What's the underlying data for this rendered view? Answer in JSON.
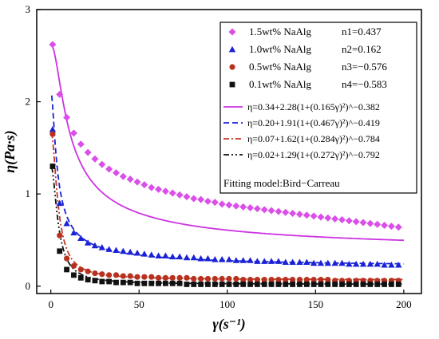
{
  "chart_data": {
    "type": "scatter",
    "title": "",
    "xlabel": "γ(s⁻¹)",
    "ylabel": "η(Pa·s)",
    "xlim": [
      -8,
      210
    ],
    "ylim": [
      -0.08,
      3.0
    ],
    "xticks": [
      0,
      50,
      100,
      150,
      200
    ],
    "yticks": [
      0,
      1,
      2,
      3
    ],
    "legend_position": "top-right",
    "fitting_model_label": "Fitting model:Bird−Carreau",
    "series": [
      {
        "name": "1.5wt% NaAlg",
        "n_label": "n1=0.437",
        "color": "#d94fe8",
        "marker": "diamond",
        "x": [
          1,
          5,
          9,
          13,
          17,
          21,
          25,
          29,
          33,
          37,
          41,
          45,
          49,
          53,
          57,
          61,
          65,
          69,
          73,
          77,
          81,
          85,
          89,
          93,
          97,
          101,
          105,
          109,
          113,
          117,
          121,
          125,
          129,
          133,
          137,
          141,
          145,
          149,
          153,
          157,
          161,
          165,
          169,
          173,
          177,
          181,
          185,
          189,
          193,
          197
        ],
        "values": [
          2.62,
          2.08,
          1.83,
          1.66,
          1.54,
          1.45,
          1.38,
          1.32,
          1.27,
          1.23,
          1.19,
          1.16,
          1.13,
          1.1,
          1.07,
          1.05,
          1.03,
          1.01,
          0.99,
          0.97,
          0.95,
          0.94,
          0.92,
          0.91,
          0.89,
          0.88,
          0.87,
          0.86,
          0.85,
          0.84,
          0.83,
          0.82,
          0.81,
          0.8,
          0.79,
          0.78,
          0.77,
          0.76,
          0.75,
          0.74,
          0.73,
          0.72,
          0.71,
          0.7,
          0.69,
          0.68,
          0.67,
          0.66,
          0.65,
          0.64
        ]
      },
      {
        "name": "1.0wt% NaAlg",
        "n_label": "n2=0.162",
        "color": "#1a22d6",
        "marker": "triangle",
        "x": [
          1,
          5,
          9,
          13,
          17,
          21,
          25,
          29,
          33,
          37,
          41,
          45,
          49,
          53,
          57,
          61,
          65,
          69,
          73,
          77,
          81,
          85,
          89,
          93,
          97,
          101,
          105,
          109,
          113,
          117,
          121,
          125,
          129,
          133,
          137,
          141,
          145,
          149,
          153,
          157,
          161,
          165,
          169,
          173,
          177,
          181,
          185,
          189,
          193,
          197
        ],
        "values": [
          1.7,
          0.9,
          0.68,
          0.58,
          0.52,
          0.47,
          0.44,
          0.42,
          0.4,
          0.39,
          0.38,
          0.37,
          0.36,
          0.35,
          0.34,
          0.33,
          0.33,
          0.32,
          0.32,
          0.31,
          0.31,
          0.3,
          0.3,
          0.29,
          0.29,
          0.29,
          0.28,
          0.28,
          0.28,
          0.27,
          0.27,
          0.27,
          0.27,
          0.26,
          0.26,
          0.26,
          0.26,
          0.25,
          0.25,
          0.25,
          0.25,
          0.25,
          0.24,
          0.24,
          0.24,
          0.24,
          0.24,
          0.23,
          0.23,
          0.23
        ]
      },
      {
        "name": "0.5wt% NaAlg",
        "n_label": "n3=−0.576",
        "color": "#b8311f",
        "marker": "circle",
        "x": [
          1,
          5,
          9,
          13,
          17,
          21,
          25,
          29,
          33,
          37,
          41,
          45,
          49,
          53,
          57,
          61,
          65,
          69,
          73,
          77,
          81,
          85,
          89,
          93,
          97,
          101,
          105,
          109,
          113,
          117,
          121,
          125,
          129,
          133,
          137,
          141,
          145,
          149,
          153,
          157,
          161,
          165,
          169,
          173,
          177,
          181,
          185,
          189,
          193,
          197
        ],
        "values": [
          1.65,
          0.55,
          0.3,
          0.22,
          0.18,
          0.16,
          0.14,
          0.13,
          0.12,
          0.12,
          0.11,
          0.11,
          0.1,
          0.1,
          0.1,
          0.09,
          0.09,
          0.09,
          0.09,
          0.09,
          0.08,
          0.08,
          0.08,
          0.08,
          0.08,
          0.08,
          0.08,
          0.07,
          0.07,
          0.07,
          0.07,
          0.07,
          0.07,
          0.07,
          0.07,
          0.07,
          0.07,
          0.07,
          0.07,
          0.07,
          0.06,
          0.06,
          0.06,
          0.06,
          0.06,
          0.06,
          0.06,
          0.06,
          0.06,
          0.06
        ]
      },
      {
        "name": "0.1wt% NaAlg",
        "n_label": "n4=−0.583",
        "color": "#111111",
        "marker": "square",
        "x": [
          1,
          5,
          9,
          13,
          17,
          21,
          25,
          29,
          33,
          37,
          41,
          45,
          49,
          53,
          57,
          61,
          65,
          69,
          73,
          77,
          81,
          85,
          89,
          93,
          97,
          101,
          105,
          109,
          113,
          117,
          121,
          125,
          129,
          133,
          137,
          141,
          145,
          149,
          153,
          157,
          161,
          165,
          169,
          173,
          177,
          181,
          185,
          189,
          193,
          197
        ],
        "values": [
          1.3,
          0.38,
          0.18,
          0.12,
          0.09,
          0.07,
          0.06,
          0.05,
          0.05,
          0.04,
          0.04,
          0.04,
          0.03,
          0.03,
          0.03,
          0.03,
          0.03,
          0.03,
          0.03,
          0.02,
          0.02,
          0.02,
          0.02,
          0.02,
          0.02,
          0.02,
          0.02,
          0.02,
          0.02,
          0.02,
          0.02,
          0.02,
          0.02,
          0.02,
          0.02,
          0.02,
          0.02,
          0.02,
          0.02,
          0.02,
          0.02,
          0.02,
          0.02,
          0.02,
          0.02,
          0.02,
          0.02,
          0.02,
          0.02,
          0.02
        ]
      }
    ],
    "fits": [
      {
        "label": "η=0.34+2.28(1+(0.165γ)²)^−0.382",
        "color": "#cc33e0",
        "dash": "solid",
        "eta_inf": 0.34,
        "eta_0": 2.28,
        "lambda": 0.165,
        "exponent": -0.382
      },
      {
        "label": "η=0.20+1.91(1+(0.467γ)²)^−0.419",
        "color": "#1a22d6",
        "dash": "dash",
        "eta_inf": 0.2,
        "eta_0": 1.91,
        "lambda": 0.467,
        "exponent": -0.419
      },
      {
        "label": "η=0.07+1.62(1+(0.284γ)²)^−0.784",
        "color": "#c0392b",
        "dash": "dashdot",
        "eta_inf": 0.07,
        "eta_0": 1.62,
        "lambda": 0.284,
        "exponent": -0.784
      },
      {
        "label": "η=0.02+1.29(1+(0.272γ)²)^−0.792",
        "color": "#111111",
        "dash": "dashdotdot",
        "eta_inf": 0.02,
        "eta_0": 1.29,
        "lambda": 0.272,
        "exponent": -0.792
      }
    ]
  }
}
